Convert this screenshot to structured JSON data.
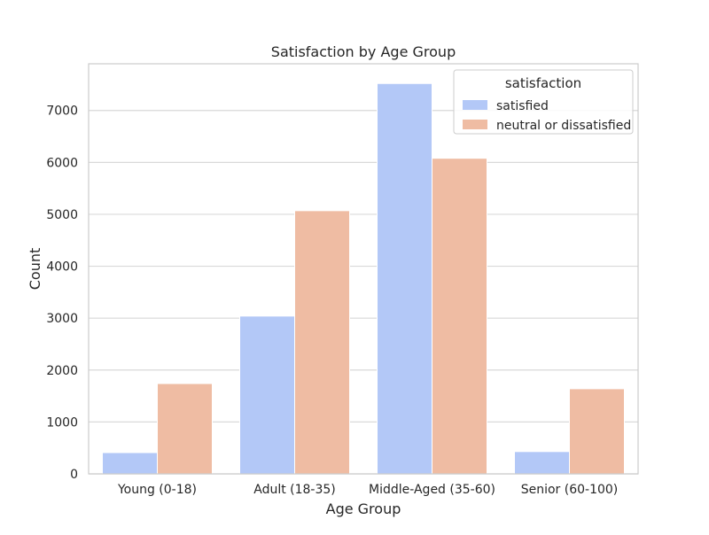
{
  "chart_data": {
    "type": "bar",
    "title": "Satisfaction by Age Group",
    "xlabel": "Age Group",
    "ylabel": "Count",
    "categories": [
      "Young (0-18)",
      "Adult (18-35)",
      "Middle-Aged (35-60)",
      "Senior (60-100)"
    ],
    "series": [
      {
        "name": "satisfied",
        "color": "#b3c8f7",
        "values": [
          410,
          3040,
          7520,
          430
        ]
      },
      {
        "name": "neutral or dissatisfied",
        "color": "#efbca3",
        "values": [
          1740,
          5070,
          6080,
          1640
        ]
      }
    ],
    "ylim": [
      0,
      7900
    ],
    "yticks": [
      0,
      1000,
      2000,
      3000,
      4000,
      5000,
      6000,
      7000
    ],
    "grid": true,
    "legend": {
      "title": "satisfaction",
      "placement": "top-right"
    }
  }
}
